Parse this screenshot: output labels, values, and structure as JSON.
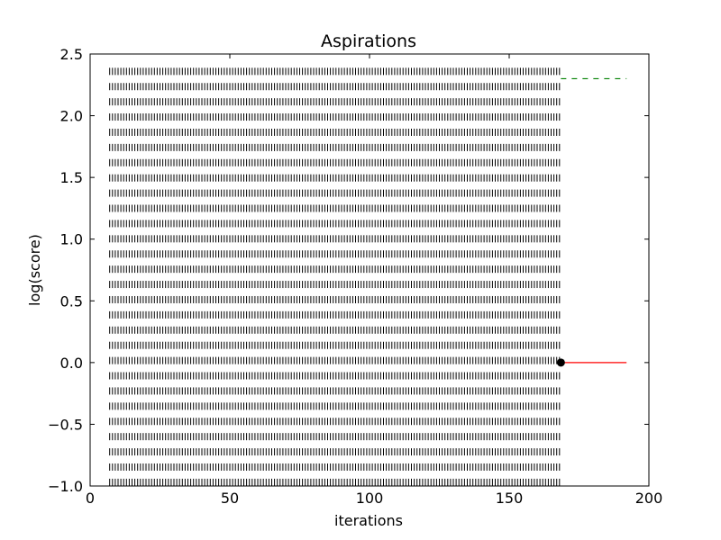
{
  "chart_data": {
    "type": "line",
    "title": "Aspirations",
    "xlabel": "iterations",
    "ylabel": "log(score)",
    "xlim": [
      0,
      200
    ],
    "ylim": [
      -1.0,
      2.5
    ],
    "grid": false,
    "xticks": [
      0,
      50,
      100,
      150,
      200
    ],
    "yticks": [
      -1.0,
      -0.5,
      0.0,
      0.5,
      1.0,
      1.5,
      2.0,
      2.5
    ],
    "xtick_labels": [
      "0",
      "50",
      "100",
      "150",
      "200"
    ],
    "ytick_labels": [
      "−1.0",
      "−0.5",
      "0.0",
      "0.5",
      "1.0",
      "1.5",
      "2.0",
      "2.5"
    ],
    "tick_mark_rows": {
      "x_start": 7,
      "x_end": 168,
      "x_step": 1,
      "y_start": -0.97,
      "y_end": 2.43,
      "y_step": 0.1233,
      "color": "#000000"
    },
    "series": [
      {
        "x": [
          168.5,
          192
        ],
        "y": [
          2.3,
          2.3
        ],
        "color": "#008000",
        "style": "dashed"
      },
      {
        "x": [
          168.5,
          192
        ],
        "y": [
          0.0,
          0.0
        ],
        "color": "#ff0000",
        "style": "solid"
      },
      {
        "x": [
          168.5
        ],
        "y": [
          0.0
        ],
        "color": "#000000",
        "style": "marker"
      }
    ]
  }
}
